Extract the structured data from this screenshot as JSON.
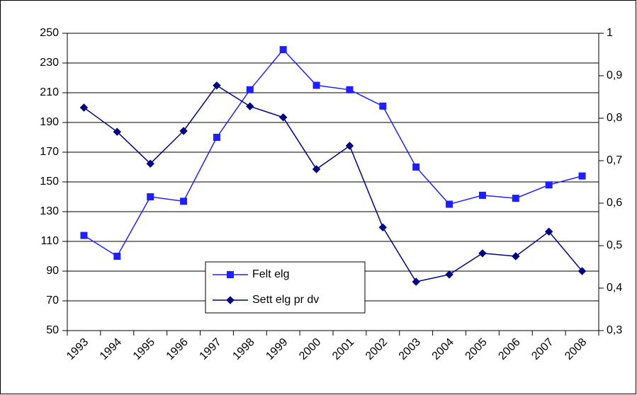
{
  "chart_data": {
    "type": "line",
    "categories": [
      "1993",
      "1994",
      "1995",
      "1996",
      "1997",
      "1998",
      "1999",
      "2000",
      "2001",
      "2002",
      "2003",
      "2004",
      "2005",
      "2006",
      "2007",
      "2008"
    ],
    "series": [
      {
        "name": "Felt elg",
        "color": "#1f1fff",
        "marker": "square",
        "axis": "y",
        "values": [
          114,
          100,
          140,
          137,
          180,
          212,
          239,
          215,
          212,
          201,
          160,
          135,
          141,
          139,
          148,
          154
        ]
      },
      {
        "name": "Sett elg pr dv",
        "color": "#000080",
        "marker": "diamond",
        "axis": "y2",
        "values": [
          0.825,
          0.768,
          0.693,
          0.77,
          0.877,
          0.828,
          0.802,
          0.68,
          0.735,
          0.543,
          0.415,
          0.432,
          0.482,
          0.475,
          0.533,
          0.44
        ]
      }
    ],
    "ylim": [
      50,
      250
    ],
    "yticks": [
      50,
      70,
      90,
      110,
      130,
      150,
      170,
      190,
      210,
      230,
      250
    ],
    "y2lim": [
      0.3,
      1
    ],
    "y2ticks": [
      {
        "value": 0.3,
        "label": "0,3"
      },
      {
        "value": 0.4,
        "label": "0,4"
      },
      {
        "value": 0.5,
        "label": "0,5"
      },
      {
        "value": 0.6,
        "label": "0,6"
      },
      {
        "value": 0.7,
        "label": "0,7"
      },
      {
        "value": 0.8,
        "label": "0,8"
      },
      {
        "value": 0.9,
        "label": "0,9"
      },
      1
    ],
    "grid": true
  }
}
